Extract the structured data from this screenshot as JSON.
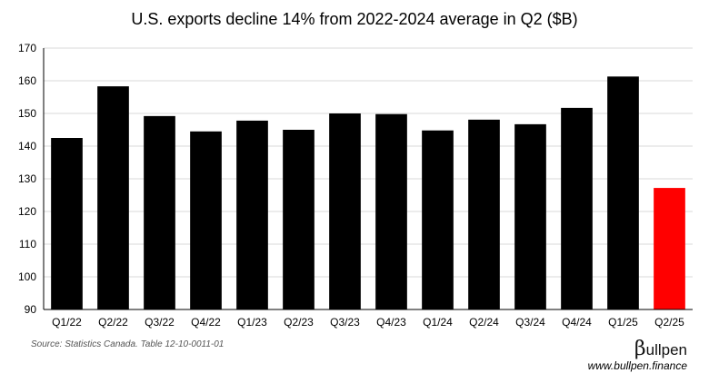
{
  "chart_data": {
    "type": "bar",
    "title": "U.S. exports decline 14% from 2022-2024 average in Q2 ($B)",
    "xlabel": "",
    "ylabel": "",
    "categories": [
      "Q1/22",
      "Q2/22",
      "Q3/22",
      "Q4/22",
      "Q1/23",
      "Q2/23",
      "Q3/23",
      "Q4/23",
      "Q1/24",
      "Q2/24",
      "Q3/24",
      "Q4/24",
      "Q1/25",
      "Q2/25"
    ],
    "values": [
      142.5,
      158.3,
      149.2,
      144.5,
      147.8,
      145.0,
      150.0,
      149.8,
      144.8,
      148.1,
      146.7,
      151.7,
      161.3,
      127.2
    ],
    "bar_colors": [
      "#000000",
      "#000000",
      "#000000",
      "#000000",
      "#000000",
      "#000000",
      "#000000",
      "#000000",
      "#000000",
      "#000000",
      "#000000",
      "#000000",
      "#000000",
      "#ff0000"
    ],
    "ylim": [
      90,
      170
    ],
    "yticks": [
      90,
      100,
      110,
      120,
      130,
      140,
      150,
      160,
      170
    ],
    "grid": true
  },
  "footer": {
    "source": "Source: Statistics Canada. Table 12-10-0011-01",
    "brand_symbol": "β",
    "brand_text": "ullpen",
    "website": "www.bullpen.finance"
  }
}
